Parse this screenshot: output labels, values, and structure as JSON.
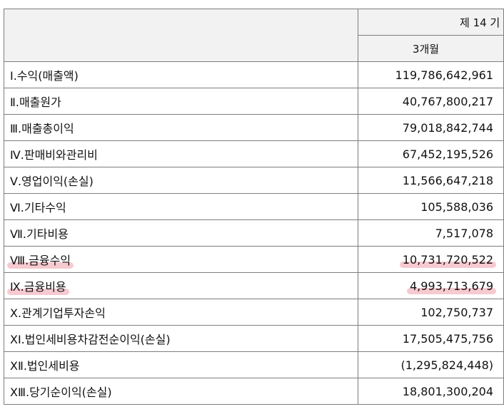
{
  "header": {
    "period_label": "제 14 기",
    "sub_label": "3개월"
  },
  "highlight_color": "#e87484",
  "rows": [
    {
      "label": "Ⅰ.수익(매출액)",
      "value": "119,786,642,961"
    },
    {
      "label": "Ⅱ.매출원가",
      "value": "40,767,800,217"
    },
    {
      "label": "Ⅲ.매출총이익",
      "value": "79,018,842,744"
    },
    {
      "label": "Ⅳ.판매비와관리비",
      "value": "67,452,195,526"
    },
    {
      "label": "Ⅴ.영업이익(손실)",
      "value": "11,566,647,218"
    },
    {
      "label": "Ⅵ.기타수익",
      "value": "105,588,036"
    },
    {
      "label": "Ⅶ.기타비용",
      "value": "7,517,078"
    },
    {
      "label": "Ⅷ.금융수익",
      "value": "10,731,720,522"
    },
    {
      "label": "Ⅸ.금융비용",
      "value": "4,993,713,679"
    },
    {
      "label": "Ⅹ.관계기업투자손익",
      "value": "102,750,737"
    },
    {
      "label": "XI.법인세비용차감전순이익(손실)",
      "value": "17,505,475,756"
    },
    {
      "label": "XⅡ.법인세비용",
      "value": "(1,295,824,448)"
    },
    {
      "label": "XⅢ.당기순이익(손실)",
      "value": "18,801,300,204"
    }
  ]
}
